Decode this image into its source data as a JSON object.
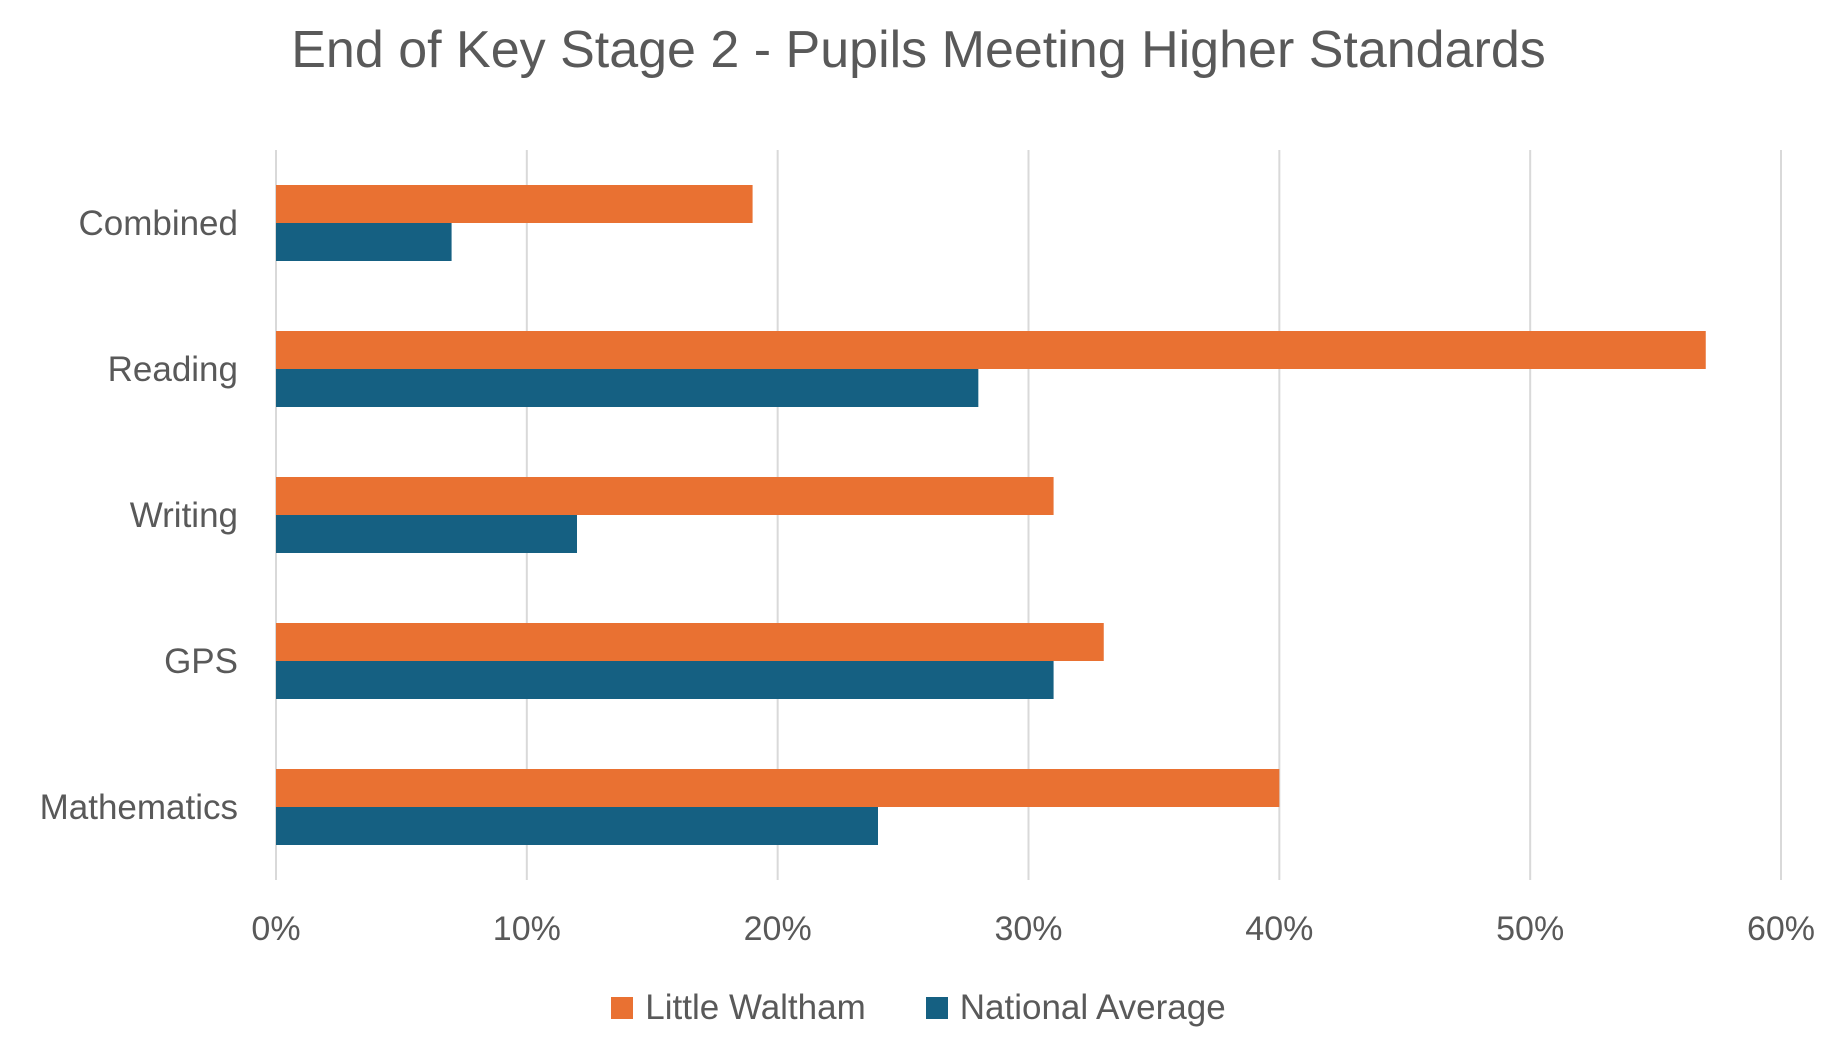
{
  "chart_data": {
    "type": "bar",
    "orientation": "horizontal",
    "title": "End of Key Stage 2 - Pupils Meeting Higher Standards",
    "categories": [
      "Combined",
      "Reading",
      "Writing",
      "GPS",
      "Mathematics"
    ],
    "series": [
      {
        "name": "Little Waltham",
        "color": "#E97132",
        "values": [
          0.19,
          0.57,
          0.31,
          0.33,
          0.4
        ]
      },
      {
        "name": "National Average",
        "color": "#156082",
        "values": [
          0.07,
          0.28,
          0.12,
          0.31,
          0.24
        ]
      }
    ],
    "xlim": [
      0,
      0.6
    ],
    "x_ticks": [
      0,
      0.1,
      0.2,
      0.3,
      0.4,
      0.5,
      0.6
    ],
    "x_tick_labels": [
      "0%",
      "10%",
      "20%",
      "30%",
      "40%",
      "50%",
      "60%"
    ],
    "grid": "vertical",
    "legend_position": "bottom"
  }
}
